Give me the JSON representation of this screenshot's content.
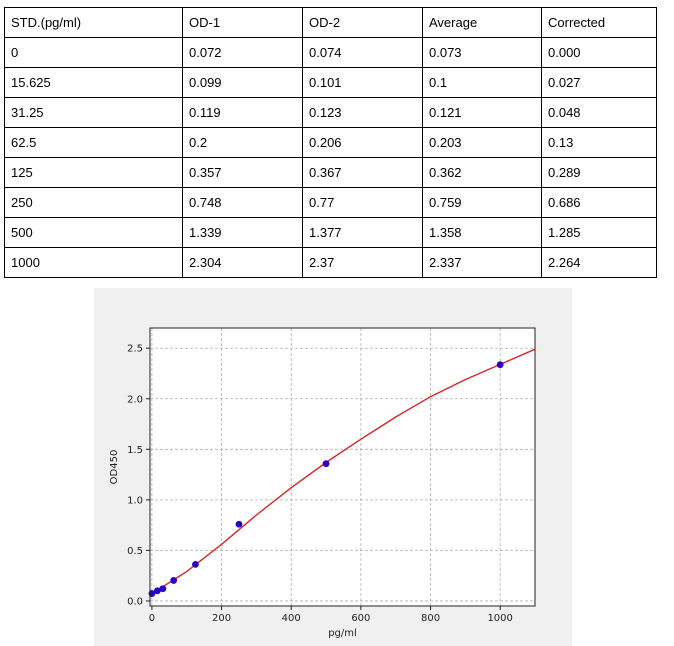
{
  "table": {
    "headers": [
      "STD.(pg/ml)",
      "OD-1",
      "OD-2",
      "Average",
      "Corrected"
    ],
    "rows": [
      [
        "0",
        "0.072",
        "0.074",
        "0.073",
        "0.000"
      ],
      [
        "15.625",
        "0.099",
        "0.101",
        "0.1",
        "0.027"
      ],
      [
        "31.25",
        "0.119",
        "0.123",
        "0.121",
        "0.048"
      ],
      [
        "62.5",
        "0.2",
        "0.206",
        "0.203",
        "0.13"
      ],
      [
        "125",
        "0.357",
        "0.367",
        "0.362",
        "0.289"
      ],
      [
        "250",
        "0.748",
        "0.77",
        "0.759",
        "0.686"
      ],
      [
        "500",
        "1.339",
        "1.377",
        "1.358",
        "1.285"
      ],
      [
        "1000",
        "2.304",
        "2.37",
        "2.337",
        "2.264"
      ]
    ]
  },
  "chart_data": {
    "type": "scatter",
    "title": "",
    "xlabel": "pg/ml",
    "ylabel": "OD450",
    "xlim": [
      0,
      1100
    ],
    "ylim": [
      0,
      2.5
    ],
    "xticks": [
      0,
      200,
      400,
      600,
      800,
      1000
    ],
    "yticks": [
      0.0,
      0.5,
      1.0,
      1.5,
      2.0,
      2.5
    ],
    "xtick_labels": [
      "0",
      "200",
      "400",
      "600",
      "800",
      "1000"
    ],
    "ytick_labels": [
      "0.0",
      "0.5",
      "1.0",
      "1.5",
      "2.0",
      "2.5"
    ],
    "grid": true,
    "point_color": "#2a00c8",
    "curve_color": "#d62728",
    "series": [
      {
        "type": "scatter",
        "x": [
          0,
          15.625,
          31.25,
          62.5,
          125,
          250,
          500,
          1000
        ],
        "y": [
          0.073,
          0.1,
          0.121,
          0.203,
          0.362,
          0.759,
          1.358,
          2.337
        ]
      },
      {
        "type": "line",
        "x": [
          0,
          100,
          200,
          300,
          400,
          500,
          600,
          700,
          800,
          900,
          1000,
          1100
        ],
        "y": [
          0.073,
          0.29,
          0.56,
          0.85,
          1.12,
          1.37,
          1.6,
          1.82,
          2.02,
          2.19,
          2.34,
          2.49
        ]
      }
    ]
  }
}
